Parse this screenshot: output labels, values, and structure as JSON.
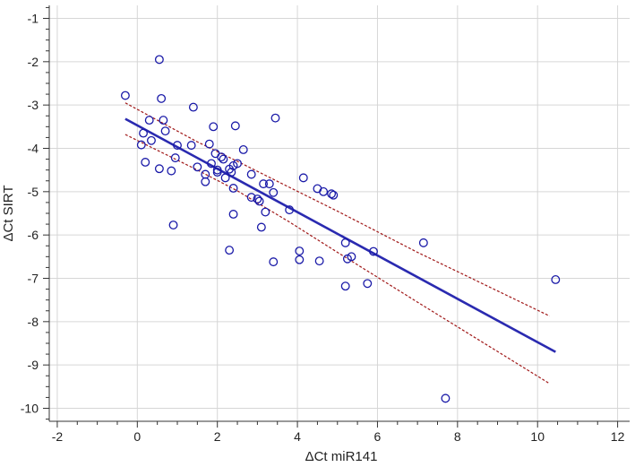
{
  "chart_data": {
    "type": "scatter",
    "title": "",
    "xlabel": "ΔCt miR141",
    "ylabel": "ΔCt SIRT",
    "xlim": [
      -2.2,
      12.3
    ],
    "ylim": [
      -10.3,
      -0.7
    ],
    "xticks": [
      -2,
      0,
      2,
      4,
      6,
      8,
      10,
      12
    ],
    "yticks": [
      -1,
      -2,
      -3,
      -4,
      -5,
      -6,
      -7,
      -8,
      -9,
      -10
    ],
    "grid": true,
    "point_color": "#1a1aa8",
    "line_color": "#2a2ab0",
    "ci_color": "#a01818",
    "points": [
      {
        "x": -0.3,
        "y": -2.78
      },
      {
        "x": 0.55,
        "y": -1.95
      },
      {
        "x": 0.6,
        "y": -2.85
      },
      {
        "x": 0.65,
        "y": -3.35
      },
      {
        "x": 0.3,
        "y": -3.35
      },
      {
        "x": 0.15,
        "y": -3.65
      },
      {
        "x": 0.7,
        "y": -3.6
      },
      {
        "x": 0.35,
        "y": -3.82
      },
      {
        "x": 0.1,
        "y": -3.92
      },
      {
        "x": 0.2,
        "y": -4.32
      },
      {
        "x": 0.55,
        "y": -4.47
      },
      {
        "x": 0.85,
        "y": -4.52
      },
      {
        "x": 0.95,
        "y": -4.22
      },
      {
        "x": 1.0,
        "y": -3.93
      },
      {
        "x": 1.35,
        "y": -3.93
      },
      {
        "x": 1.4,
        "y": -3.05
      },
      {
        "x": 1.5,
        "y": -4.43
      },
      {
        "x": 1.7,
        "y": -4.6
      },
      {
        "x": 1.7,
        "y": -4.77
      },
      {
        "x": 1.8,
        "y": -3.9
      },
      {
        "x": 1.85,
        "y": -4.35
      },
      {
        "x": 1.9,
        "y": -3.5
      },
      {
        "x": 1.95,
        "y": -4.12
      },
      {
        "x": 2.0,
        "y": -4.5
      },
      {
        "x": 2.0,
        "y": -4.55
      },
      {
        "x": 2.1,
        "y": -4.2
      },
      {
        "x": 2.15,
        "y": -4.25
      },
      {
        "x": 2.2,
        "y": -4.68
      },
      {
        "x": 2.3,
        "y": -4.48
      },
      {
        "x": 2.35,
        "y": -4.55
      },
      {
        "x": 2.4,
        "y": -4.4
      },
      {
        "x": 2.5,
        "y": -4.35
      },
      {
        "x": 2.4,
        "y": -4.92
      },
      {
        "x": 2.45,
        "y": -3.48
      },
      {
        "x": 2.65,
        "y": -4.03
      },
      {
        "x": 2.85,
        "y": -4.6
      },
      {
        "x": 2.85,
        "y": -5.13
      },
      {
        "x": 3.0,
        "y": -5.17
      },
      {
        "x": 3.05,
        "y": -5.22
      },
      {
        "x": 3.15,
        "y": -4.82
      },
      {
        "x": 3.3,
        "y": -4.82
      },
      {
        "x": 3.4,
        "y": -5.02
      },
      {
        "x": 3.2,
        "y": -5.47
      },
      {
        "x": 3.1,
        "y": -5.82
      },
      {
        "x": 2.4,
        "y": -5.52
      },
      {
        "x": 0.9,
        "y": -5.77
      },
      {
        "x": 2.3,
        "y": -6.35
      },
      {
        "x": 3.45,
        "y": -3.3
      },
      {
        "x": 3.8,
        "y": -5.42
      },
      {
        "x": 4.15,
        "y": -4.68
      },
      {
        "x": 4.5,
        "y": -4.93
      },
      {
        "x": 4.65,
        "y": -5.0
      },
      {
        "x": 4.85,
        "y": -5.05
      },
      {
        "x": 4.9,
        "y": -5.08
      },
      {
        "x": 4.05,
        "y": -6.37
      },
      {
        "x": 4.05,
        "y": -6.57
      },
      {
        "x": 3.4,
        "y": -6.62
      },
      {
        "x": 4.55,
        "y": -6.6
      },
      {
        "x": 5.2,
        "y": -6.18
      },
      {
        "x": 5.25,
        "y": -6.55
      },
      {
        "x": 5.35,
        "y": -6.5
      },
      {
        "x": 5.2,
        "y": -7.18
      },
      {
        "x": 5.75,
        "y": -7.12
      },
      {
        "x": 5.9,
        "y": -6.38
      },
      {
        "x": 7.15,
        "y": -6.18
      },
      {
        "x": 10.45,
        "y": -7.03
      },
      {
        "x": 7.7,
        "y": -9.77
      }
    ],
    "regression": {
      "x": [
        -0.3,
        10.45
      ],
      "y": [
        -3.32,
        -8.7
      ]
    },
    "ci_upper": {
      "x": [
        -0.3,
        1.5,
        2.5,
        3.8,
        5.0,
        7.0,
        10.3
      ],
      "y": [
        -2.95,
        -3.85,
        -4.3,
        -4.9,
        -5.45,
        -6.4,
        -7.87
      ]
    },
    "ci_lower": {
      "x": [
        -0.3,
        1.5,
        2.5,
        3.8,
        5.0,
        7.0,
        10.3
      ],
      "y": [
        -3.68,
        -4.5,
        -4.98,
        -5.7,
        -6.4,
        -7.55,
        -9.43
      ]
    }
  }
}
